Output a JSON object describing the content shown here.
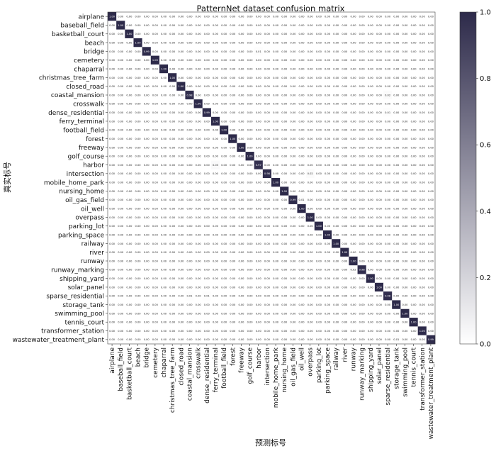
{
  "chart_data": {
    "type": "heatmap",
    "title": "PatternNet dataset confusion matrix",
    "xlabel": "预测标号",
    "ylabel": "真实标号",
    "value_format": "2 decimals",
    "classes": [
      "airplane",
      "baseball_field",
      "basketball_court",
      "beach",
      "bridge",
      "cemetery",
      "chaparral",
      "christmas_tree_farm",
      "closed_road",
      "coastal_mansion",
      "crosswalk",
      "dense_residential",
      "ferry_terminal",
      "football_field",
      "forest",
      "freeway",
      "golf_course",
      "harbor",
      "intersection",
      "mobile_home_park",
      "nursing_home",
      "oil_gas_field",
      "oil_well",
      "overpass",
      "parking_lot",
      "parking_space",
      "railway",
      "river",
      "runway",
      "runway_marking",
      "shipping_yard",
      "solar_panel",
      "sparse_residential",
      "storage_tank",
      "swimming_pool",
      "tennis_court",
      "transformer_station",
      "wastewater_treatment_plant"
    ],
    "diagonal": [
      1.0,
      1.0,
      1.0,
      1.0,
      0.99,
      1.0,
      1.0,
      1.0,
      1.0,
      0.98,
      1.0,
      0.99,
      1.0,
      1.0,
      1.0,
      1.0,
      1.0,
      0.97,
      0.98,
      1.0,
      1.0,
      0.99,
      1.0,
      1.0,
      1.0,
      1.0,
      1.0,
      1.0,
      1.0,
      0.98,
      1.0,
      1.0,
      0.98,
      1.0,
      1.0,
      1.0,
      1.0,
      0.99
    ],
    "off_diagonal": [
      {
        "row": "bridge",
        "col": "harbor",
        "value": 0.01
      },
      {
        "row": "coastal_mansion",
        "col": "sparse_residential",
        "value": 0.02
      },
      {
        "row": "dense_residential",
        "col": "sparse_residential",
        "value": 0.01
      },
      {
        "row": "harbor",
        "col": "ferry_terminal",
        "value": 0.03
      },
      {
        "row": "intersection",
        "col": "overpass",
        "value": 0.02
      },
      {
        "row": "oil_gas_field",
        "col": "oil_well",
        "value": 0.01
      },
      {
        "row": "runway_marking",
        "col": "runway",
        "value": 0.02
      },
      {
        "row": "sparse_residential",
        "col": "dense_residential",
        "value": 0.01
      },
      {
        "row": "sparse_residential",
        "col": "coastal_mansion",
        "value": 0.01
      },
      {
        "row": "wastewater_treatment_plant",
        "col": "storage_tank",
        "value": 0.01
      }
    ],
    "colorbar": {
      "ticks": [
        "0.0",
        "0.2",
        "0.4",
        "0.6",
        "0.8",
        "1.0"
      ],
      "low_color": "#ffffff",
      "high_color": "#2d2a4a"
    },
    "grid": false
  }
}
